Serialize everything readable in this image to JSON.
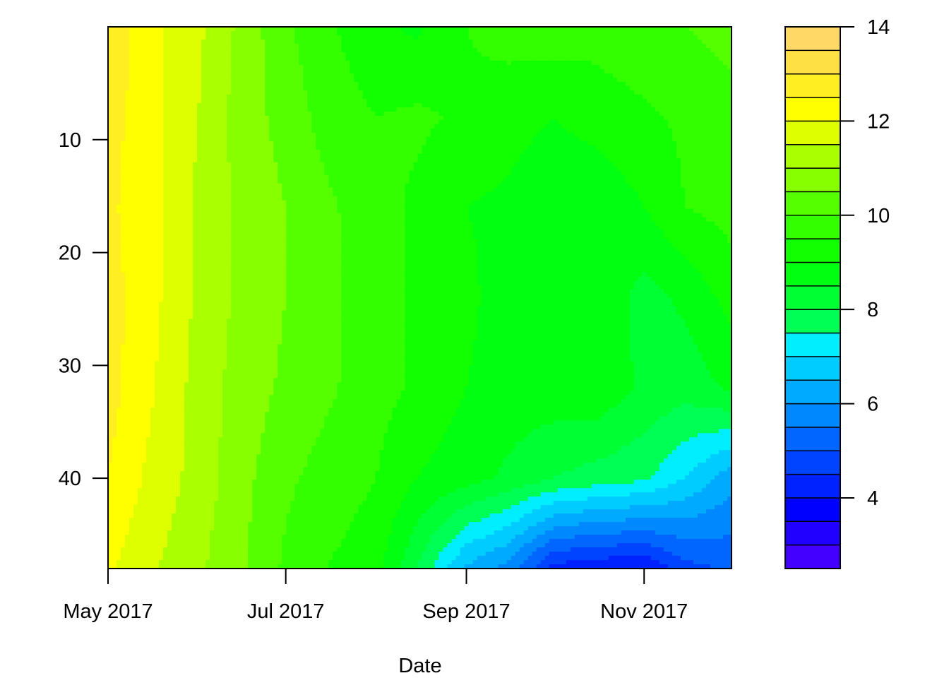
{
  "chart_data": {
    "type": "heatmap",
    "subtype": "filled-contour",
    "title": "",
    "xlabel": "Date",
    "ylabel": "",
    "x_ticks": [
      "May 2017",
      "Jul 2017",
      "Sep 2017",
      "Nov 2017"
    ],
    "y_ticks": [
      10,
      20,
      30,
      40
    ],
    "y_axis_reversed": true,
    "ylim": [
      48,
      0
    ],
    "xlim": [
      "2017-05-01",
      "2017-12-01"
    ],
    "x_dates": [
      "2017-05-01",
      "2017-05-15",
      "2017-06-01",
      "2017-06-15",
      "2017-07-01",
      "2017-07-15",
      "2017-08-01",
      "2017-08-15",
      "2017-09-01",
      "2017-09-15",
      "2017-10-01",
      "2017-10-15",
      "2017-11-01",
      "2017-11-15",
      "2017-12-01"
    ],
    "y_depths": [
      0,
      8,
      16,
      24,
      32,
      40,
      48
    ],
    "z_matrix": [
      [
        12.9,
        12.2,
        11.6,
        10.9,
        10.1,
        9.6,
        9.1,
        8.9,
        9.5,
        9.7,
        9.8,
        9.7,
        9.9,
        10.0,
        10.2
      ],
      [
        12.7,
        12.2,
        11.5,
        10.8,
        10.3,
        9.8,
        9.5,
        9.6,
        9.4,
        9.2,
        9.0,
        9.2,
        9.4,
        9.6,
        9.8
      ],
      [
        12.6,
        12.2,
        11.4,
        10.9,
        10.5,
        10.1,
        9.7,
        9.4,
        9.0,
        8.9,
        8.6,
        8.6,
        9.0,
        9.5,
        9.7
      ],
      [
        12.7,
        12.2,
        11.4,
        10.9,
        10.5,
        10.1,
        9.8,
        9.4,
        9.1,
        8.8,
        8.8,
        8.9,
        8.3,
        8.6,
        9.2
      ],
      [
        12.7,
        12.1,
        11.3,
        10.8,
        10.4,
        10.1,
        9.7,
        9.4,
        9.0,
        8.8,
        8.8,
        8.9,
        8.4,
        8.2,
        8.6
      ],
      [
        12.5,
        11.9,
        11.3,
        10.7,
        10.1,
        9.8,
        9.5,
        9.0,
        8.7,
        8.4,
        8.0,
        7.8,
        7.6,
        7.0,
        6.2
      ],
      [
        12.1,
        11.6,
        11.1,
        10.6,
        9.9,
        9.5,
        9.2,
        8.0,
        6.4,
        5.8,
        4.3,
        4.1,
        4.0,
        4.8,
        5.1
      ]
    ],
    "colorbar": {
      "min": 2.5,
      "max": 14.0,
      "levels": [
        2.5,
        3.0,
        3.5,
        4.0,
        4.5,
        5.0,
        5.5,
        6.0,
        6.5,
        7.0,
        7.5,
        8.0,
        8.5,
        9.0,
        9.5,
        10.0,
        10.5,
        11.0,
        11.5,
        12.0,
        12.5,
        13.0,
        13.5,
        14.0
      ],
      "colors": [
        "#4400ff",
        "#2200ff",
        "#0000ff",
        "#0022ff",
        "#0044ff",
        "#0066ff",
        "#0088ff",
        "#00aaff",
        "#00ccff",
        "#00eeff",
        "#00ff55",
        "#00ff33",
        "#00ff11",
        "#11ff00",
        "#33ff00",
        "#55ff00",
        "#88ff00",
        "#aaff00",
        "#ddff00",
        "#ffff00",
        "#ffee22",
        "#ffe044",
        "#ffd866"
      ],
      "tick_labels": [
        "4",
        "6",
        "8",
        "10",
        "12",
        "14"
      ],
      "tick_values": [
        4,
        6,
        8,
        10,
        12,
        14
      ]
    },
    "grid": false,
    "legend": "right-colorbar"
  }
}
